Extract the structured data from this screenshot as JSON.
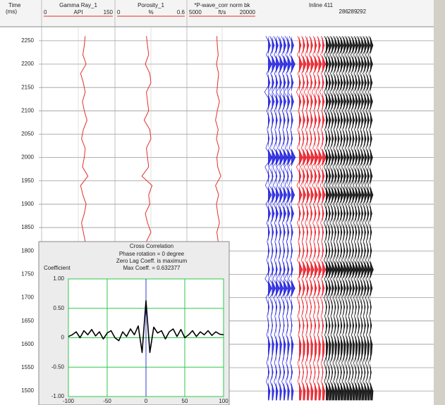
{
  "chart_data": [
    {
      "type": "log",
      "y_label": [
        "Time",
        "(ms)"
      ],
      "ylim": [
        1470,
        2280
      ],
      "yticks": [
        1500,
        1550,
        1600,
        1650,
        1700,
        1750,
        1800,
        1850,
        1900,
        1950,
        2000,
        2050,
        2100,
        2150,
        2200,
        2250
      ],
      "grid": true,
      "x": [
        1480,
        1500,
        1520,
        1540,
        1560,
        1580,
        1600,
        1620,
        1640,
        1660,
        1680,
        1700,
        1720,
        1740,
        1760,
        1780,
        1800,
        1820,
        1840,
        1860,
        1880,
        1900,
        1920,
        1940,
        1960,
        1980,
        2000,
        2020,
        2040,
        2060,
        2080,
        2100,
        2120,
        2140,
        2160,
        2180,
        2200,
        2220,
        2240,
        2260
      ],
      "series": [
        {
          "name": "Gamma Ray_1",
          "unit": "API",
          "color": "#e0302a",
          "xlim": [
            0,
            150
          ],
          "values": [
            85,
            88,
            92,
            80,
            86,
            90,
            84,
            95,
            82,
            88,
            86,
            90,
            78,
            94,
            100,
            80,
            84,
            90,
            86,
            82,
            88,
            92,
            85,
            80,
            96,
            84,
            88,
            90,
            82,
            86,
            94,
            88,
            84,
            90,
            86,
            80,
            92,
            85,
            88,
            90
          ]
        },
        {
          "name": "Porosity_1",
          "unit": "%",
          "color": "#e0302a",
          "xlim": [
            0,
            0.6
          ],
          "values": [
            0.28,
            0.3,
            0.26,
            0.29,
            0.27,
            0.31,
            0.25,
            0.3,
            0.28,
            0.26,
            0.29,
            0.27,
            0.32,
            0.24,
            0.22,
            0.3,
            0.28,
            0.26,
            0.3,
            0.27,
            0.25,
            0.29,
            0.28,
            0.31,
            0.22,
            0.28,
            0.27,
            0.26,
            0.3,
            0.29,
            0.24,
            0.28,
            0.27,
            0.26,
            0.3,
            0.29,
            0.25,
            0.28,
            0.27,
            0.26
          ]
        },
        {
          "name": "*P-wave_corr norm bk",
          "unit": "ft/s",
          "color": "#e0302a",
          "xlim": [
            5000,
            20000
          ],
          "values": [
            11200,
            11000,
            11500,
            11800,
            11300,
            11000,
            11600,
            11200,
            11400,
            12000,
            11300,
            11100,
            11800,
            11000,
            12500,
            11400,
            11200,
            11600,
            11300,
            11900,
            11500,
            11200,
            11700,
            11000,
            12200,
            11500,
            11300,
            11800,
            11200,
            11600,
            11000,
            11400,
            11900,
            11300,
            11500,
            11700,
            11200,
            11600,
            11400,
            11300
          ]
        }
      ]
    },
    {
      "type": "wiggle",
      "title": "Inline 411",
      "ylim": [
        1470,
        2280
      ],
      "xlim": [
        280,
        295
      ],
      "xticks": [
        286,
        289,
        292
      ],
      "x": [
        1480,
        1500,
        1520,
        1540,
        1560,
        1580,
        1600,
        1620,
        1640,
        1660,
        1680,
        1700,
        1720,
        1740,
        1760,
        1780,
        1800,
        1820,
        1840,
        1860,
        1880,
        1900,
        1920,
        1940,
        1960,
        1980,
        2000,
        2020,
        2040,
        2060,
        2080,
        2100,
        2120,
        2140,
        2160,
        2180,
        2200,
        2220,
        2240,
        2260
      ],
      "series": [
        {
          "color": "#1a1adc",
          "values": [
            0.2,
            0.5,
            -0.4,
            0.3,
            -0.3,
            0.2,
            0.5,
            -0.3,
            0.2,
            -0.2,
            0.3,
            -0.5,
            0.9,
            -0.7,
            0.4,
            -0.3,
            0.3,
            -0.2,
            0.4,
            -0.3,
            0.6,
            -0.5,
            0.8,
            -0.6,
            0.3,
            -0.7,
            1.0,
            -0.5,
            0.3,
            -0.2,
            0.4,
            -0.3,
            0.6,
            -0.8,
            0.5,
            -0.3,
            0.9,
            -0.4,
            0.6,
            -0.5
          ]
        },
        {
          "color": "#e8141e",
          "values": [
            0.4,
            0.6,
            -0.3,
            0.2,
            -0.3,
            0.4,
            0.5,
            -0.2,
            0.3,
            -0.3,
            0.2,
            -0.4,
            0.5,
            -0.3,
            0.8,
            -0.4,
            0.3,
            -0.2,
            0.3,
            -0.4,
            0.4,
            -0.3,
            0.7,
            -0.5,
            0.5,
            -0.6,
            0.9,
            -0.4,
            0.3,
            -0.3,
            0.5,
            -0.2,
            0.5,
            -0.6,
            0.4,
            -0.3,
            0.8,
            -0.4,
            0.5,
            -0.3
          ]
        },
        {
          "color": "#000000",
          "values": [
            0.6,
            0.8,
            -0.4,
            0.3,
            -0.5,
            0.4,
            0.6,
            -0.3,
            0.4,
            -0.3,
            0.3,
            -0.5,
            0.6,
            -0.4,
            0.9,
            -0.5,
            0.4,
            -0.3,
            0.4,
            -0.5,
            0.5,
            -0.4,
            0.8,
            -0.6,
            0.6,
            -0.5,
            0.7,
            -0.4,
            0.5,
            -0.3,
            0.6,
            -0.4,
            0.7,
            -0.5,
            0.6,
            -0.4,
            0.7,
            -0.5,
            0.8,
            -0.4
          ]
        }
      ]
    },
    {
      "type": "line",
      "title": "Cross Correlation",
      "annotations": [
        "Phase rotation = 0 degree",
        "Zero Lag Coeff. is maximum",
        "Max Coeff. = 0.632377"
      ],
      "y_label": "Coefficient",
      "xlim": [
        -100,
        100
      ],
      "xticks": [
        -100,
        -50,
        0,
        50,
        100
      ],
      "ylim": [
        -1,
        1
      ],
      "yticks": [
        {
          "value": 1,
          "label": "1.00"
        },
        {
          "value": 0.5,
          "label": "0.50"
        },
        0,
        {
          "value": -0.5,
          "label": "-0.50"
        },
        {
          "value": -1,
          "label": "-1.00"
        }
      ],
      "grid": true,
      "grid_color": "#2ec84a",
      "marker_color": "#3040d0",
      "x": [
        -100,
        -95,
        -90,
        -85,
        -80,
        -75,
        -70,
        -65,
        -60,
        -55,
        -50,
        -45,
        -40,
        -35,
        -30,
        -25,
        -20,
        -15,
        -10,
        -5,
        0,
        5,
        10,
        15,
        20,
        25,
        30,
        35,
        40,
        45,
        50,
        55,
        60,
        65,
        70,
        75,
        80,
        85,
        90,
        95,
        100
      ],
      "series": [
        {
          "color": "#000000",
          "values": [
            0.02,
            0.05,
            0.1,
            0.0,
            0.12,
            0.05,
            0.14,
            0.03,
            0.1,
            -0.02,
            0.08,
            0.12,
            0.0,
            -0.05,
            0.1,
            0.02,
            0.15,
            0.05,
            0.2,
            -0.25,
            0.63,
            -0.25,
            0.18,
            0.08,
            0.12,
            -0.02,
            0.1,
            0.15,
            0.02,
            0.14,
            0.0,
            0.05,
            0.12,
            0.02,
            0.1,
            0.05,
            0.12,
            0.04,
            0.1,
            0.06,
            0.05
          ]
        }
      ]
    }
  ]
}
